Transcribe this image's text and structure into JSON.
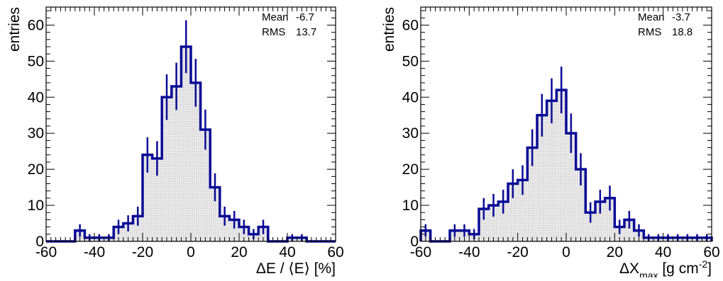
{
  "colors": {
    "histogram": "#0a0a96",
    "fill": "#bdbdbd",
    "frame": "#000000"
  },
  "chart_data": [
    {
      "type": "histogram",
      "title": "",
      "xlabel": "ΔE / ⟨E⟩ [%]",
      "ylabel": "entries",
      "xlim": [
        -60,
        60
      ],
      "ylim": [
        0,
        65
      ],
      "xticks": [
        -60,
        -40,
        -20,
        0,
        20,
        40,
        60
      ],
      "yticks": [
        0,
        10,
        20,
        30,
        40,
        50,
        60
      ],
      "bin_width": 4,
      "bin_low": -60,
      "values": [
        0,
        0,
        0,
        3,
        1,
        1,
        1,
        4,
        5,
        7,
        24,
        23,
        40,
        43,
        54,
        44,
        31,
        15,
        7,
        6,
        4,
        2,
        4,
        0,
        0,
        1,
        1,
        0,
        0,
        0
      ],
      "stats": [
        {
          "label": "Mean",
          "value": "-6.7"
        },
        {
          "label": "RMS",
          "value": "13.7"
        }
      ]
    },
    {
      "type": "histogram",
      "title": "",
      "xlabel": "ΔX_max [g cm^-2]",
      "xlabel_parts": {
        "base": "ΔX",
        "sub": "max",
        "unit_open": " [g cm",
        "sup": "-2",
        "unit_close": "]"
      },
      "ylabel": "entries",
      "xlim": [
        -60,
        60
      ],
      "ylim": [
        0,
        65
      ],
      "xticks": [
        -60,
        -40,
        -20,
        0,
        20,
        40,
        60
      ],
      "yticks": [
        0,
        10,
        20,
        30,
        40,
        50,
        60
      ],
      "bin_width": 4,
      "bin_low": -60,
      "values": [
        3,
        0,
        0,
        3,
        3,
        2,
        9,
        10,
        11,
        16,
        17,
        26,
        35,
        39,
        42,
        30,
        20,
        8,
        11,
        12,
        4,
        6,
        3,
        1,
        1,
        1,
        1,
        1,
        1,
        1
      ],
      "stats": [
        {
          "label": "Mean",
          "value": "-3.7"
        },
        {
          "label": "RMS",
          "value": "18.8"
        }
      ]
    }
  ]
}
